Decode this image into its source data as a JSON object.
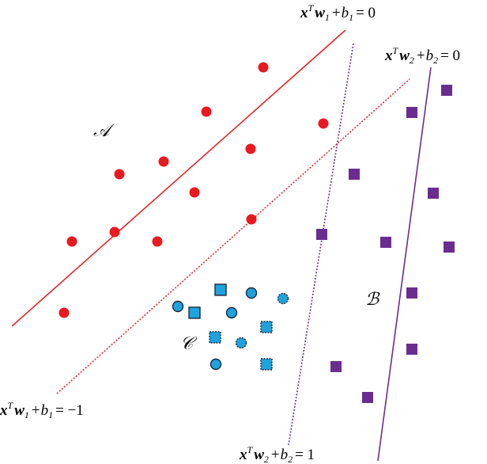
{
  "sets": [
    {
      "label": "𝒜"
    },
    {
      "label": "ℬ"
    },
    {
      "label": "𝒞"
    }
  ],
  "equations": [
    {
      "x": "x",
      "sup": "T",
      "w": "w",
      "sub": "1",
      "plus": "+",
      "b": "b",
      "sub2": "1",
      "rhs": "= 0"
    },
    {
      "x": "x",
      "sup": "T",
      "w": "w",
      "sub": "2",
      "plus": "+",
      "b": "b",
      "sub2": "2",
      "rhs": "= 0"
    },
    {
      "x": "x",
      "sup": "T",
      "w": "w",
      "sub": "1",
      "plus": "+",
      "b": "b",
      "sub2": "1",
      "rhs": "= −1"
    },
    {
      "x": "x",
      "sup": "T",
      "w": "w",
      "sub": "2",
      "plus": "+",
      "b": "b",
      "sub2": "2",
      "rhs": "= 1"
    }
  ]
}
